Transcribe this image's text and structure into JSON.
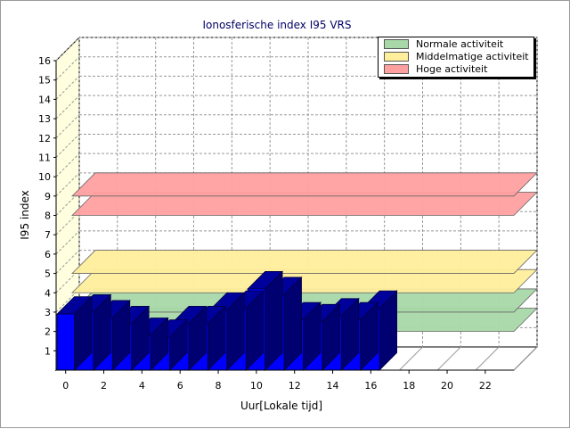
{
  "chart_data": {
    "type": "bar",
    "title": "Ionosferische index I95 VRS",
    "xlabel": "Uur[Lokale tijd]",
    "ylabel": "I95 index",
    "xlim": [
      0,
      24
    ],
    "ylim": [
      0,
      16
    ],
    "x_ticks": [
      "0",
      "2",
      "4",
      "6",
      "8",
      "10",
      "12",
      "14",
      "16",
      "18",
      "20",
      "22"
    ],
    "y_ticks": [
      "1",
      "2",
      "3",
      "4",
      "5",
      "6",
      "7",
      "8",
      "9",
      "10",
      "11",
      "12",
      "13",
      "14",
      "15",
      "16"
    ],
    "grid": true,
    "three_d": true,
    "legend_position": "top-right",
    "x": [
      0,
      1,
      2,
      3,
      4,
      5,
      6,
      7,
      8,
      9,
      10,
      11,
      12,
      13,
      14,
      15,
      16
    ],
    "values": [
      2.9,
      3.0,
      2.7,
      2.4,
      1.8,
      1.7,
      2.4,
      2.4,
      3.1,
      3.2,
      4.2,
      3.9,
      2.6,
      2.5,
      2.8,
      2.6,
      3.2
    ],
    "bar_color": "#0000ff",
    "bands": [
      {
        "name": "Normale activiteit",
        "from": 2,
        "to": 3,
        "color": "#a8d8a8"
      },
      {
        "name": "Middelmatige activiteit",
        "from": 4,
        "to": 5,
        "color": "#ffee9c"
      },
      {
        "name": "Hoge activiteit",
        "from": 8,
        "to": 9,
        "color": "#ffa0a0"
      }
    ]
  }
}
